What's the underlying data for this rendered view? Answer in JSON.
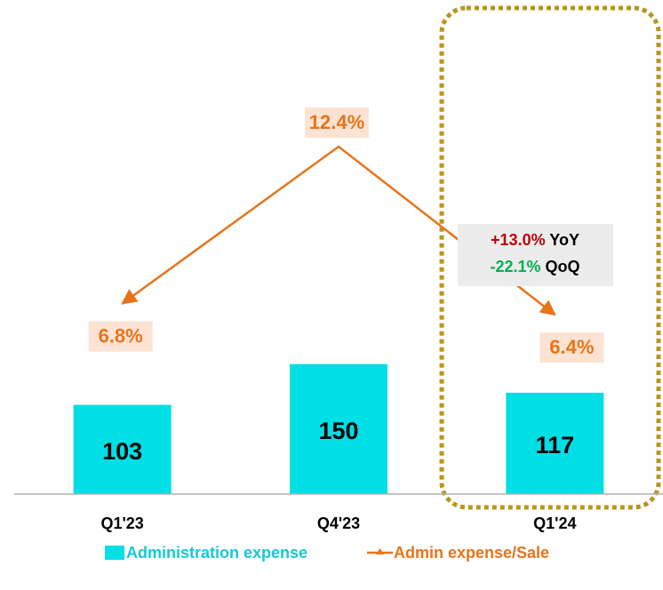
{
  "chart_data": {
    "type": "bar",
    "categories": [
      "Q1'23",
      "Q4'23",
      "Q1'24"
    ],
    "series": [
      {
        "name": "Administration expense",
        "color": "#00dfe6",
        "values": [
          103,
          150,
          117
        ]
      },
      {
        "name": "Admin expense/Sale",
        "type": "line",
        "axis": "y2",
        "color": "#e8741a",
        "values": [
          6.8,
          12.4,
          6.4
        ],
        "value_labels": [
          "6.8%",
          "12.4%",
          "6.4%"
        ]
      }
    ],
    "ylim": [
      0,
      550
    ],
    "y2lim": [
      0,
      17
    ],
    "annotations": [
      {
        "change": "+13.0%",
        "label": "YoY",
        "color": "#c00000"
      },
      {
        "change": "-22.1%",
        "label": "QoQ",
        "color": "#00b050"
      }
    ]
  }
}
